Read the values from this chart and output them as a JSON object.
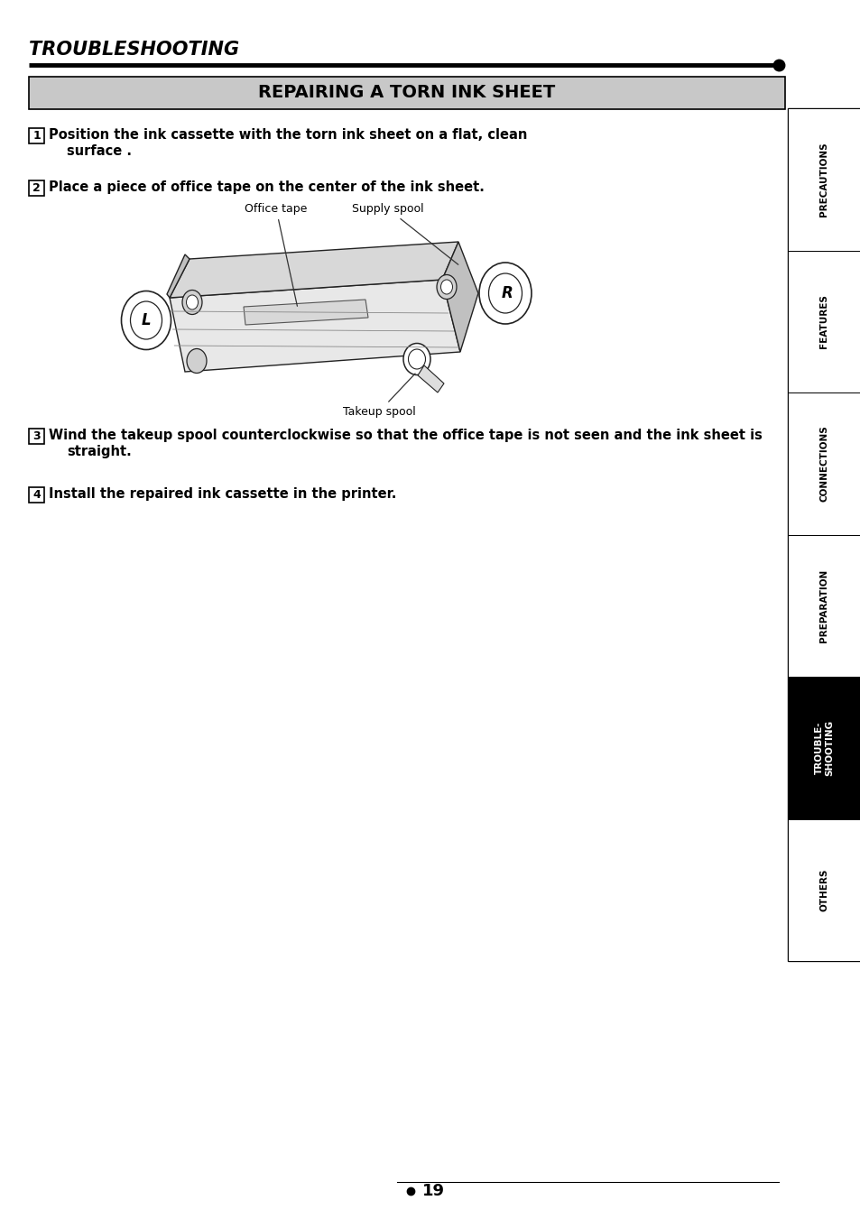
{
  "title_italic": "TROUBLESHOOTING",
  "section_title": "REPAIRING A TORN INK SHEET",
  "step1": "Position the ink cassette with the torn ink sheet on a flat, clean\n    surface .",
  "step2": "Place a piece of office tape on the center of the ink sheet.",
  "step3": "Wind the takeup spool counterclockwise so that the office tape is not seen and the ink sheet is\n    straight.",
  "step4": "Install the repaired ink cassette in the printer.",
  "label_office_tape": "Office tape",
  "label_supply_spool": "Supply spool",
  "label_takeup_spool": "Takeup spool",
  "page_number": "19",
  "sidebar_items": [
    "PRECAUTIONS",
    "FEATURES",
    "CONNECTIONS",
    "PREPARATION",
    "TROUBLE-\nSHOOTING",
    "OTHERS"
  ],
  "sidebar_active": "TROUBLE-\nSHOOTING",
  "bg_color": "#ffffff",
  "sidebar_active_bg": "#000000",
  "sidebar_active_fg": "#ffffff",
  "header_bg": "#c8c8c8",
  "line_color": "#000000"
}
